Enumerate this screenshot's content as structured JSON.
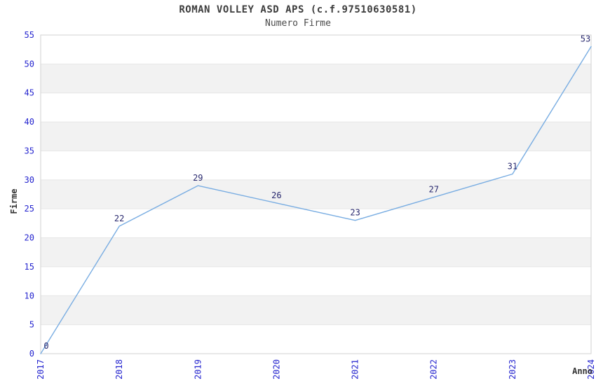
{
  "chart_data": {
    "type": "line",
    "title": "ROMAN VOLLEY ASD APS (c.f.97510630581)",
    "subtitle": "Numero Firme",
    "xlabel": "Anno",
    "ylabel": "Firme",
    "categories": [
      "2017",
      "2018",
      "2019",
      "2020",
      "2021",
      "2022",
      "2023",
      "2024"
    ],
    "series": [
      {
        "name": "Numero Firme",
        "values": [
          0,
          22,
          29,
          26,
          23,
          27,
          31,
          53
        ]
      }
    ],
    "ylim": [
      0,
      55
    ],
    "ytick_step": 5,
    "yticks": [
      0,
      5,
      10,
      15,
      20,
      25,
      30,
      35,
      40,
      45,
      50,
      55
    ],
    "grid": "horizontal-bands",
    "legend": "none",
    "point_labels_visible": true,
    "colors": {
      "line": "#79ade2",
      "tick_label": "#2525cf",
      "data_label": "#28286e",
      "band_gray": "#f2f2f2",
      "band_white": "#ffffff",
      "gridline": "#e6e6e6",
      "plot_border": "#d2d2d2",
      "title": "#3d3d3d",
      "subtitle": "#4a4a4a",
      "axis_label": "#333333",
      "background": "#ffffff"
    }
  }
}
